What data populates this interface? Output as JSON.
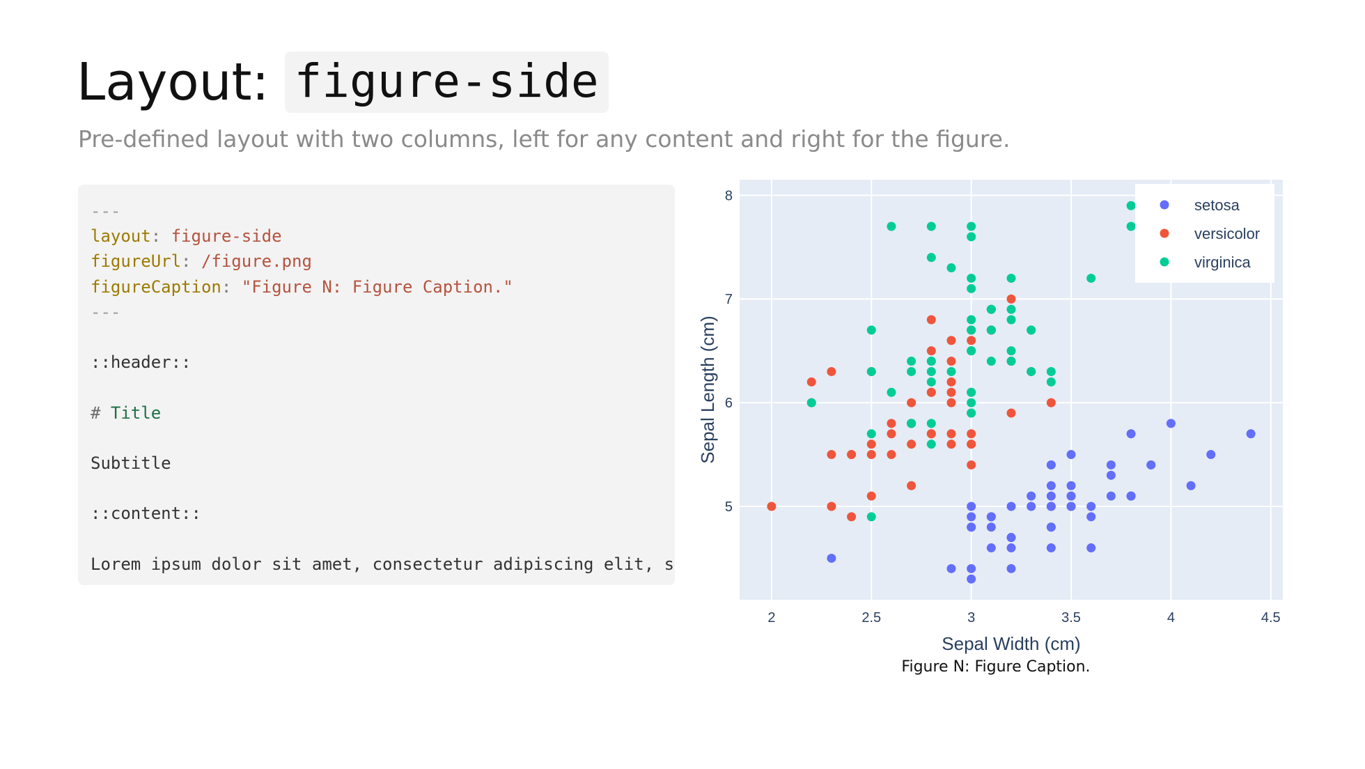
{
  "header": {
    "title_prefix": "Layout:",
    "title_code": "figure-side",
    "subtitle": "Pre-defined layout with two columns, left for any content and right for the figure."
  },
  "code": {
    "lines": [
      [
        {
          "t": "---",
          "c": "comment"
        }
      ],
      [
        {
          "t": "layout",
          "c": "key"
        },
        {
          "t": ": ",
          "c": "punct"
        },
        {
          "t": "figure-side",
          "c": "val"
        }
      ],
      [
        {
          "t": "figureUrl",
          "c": "key"
        },
        {
          "t": ": ",
          "c": "punct"
        },
        {
          "t": "/figure.png",
          "c": "val"
        }
      ],
      [
        {
          "t": "figureCaption",
          "c": "key"
        },
        {
          "t": ": ",
          "c": "punct"
        },
        {
          "t": "\"Figure N: Figure Caption.\"",
          "c": "val"
        }
      ],
      [
        {
          "t": "---",
          "c": "comment"
        }
      ],
      [],
      [
        {
          "t": "::header::",
          "c": "plain"
        }
      ],
      [],
      [
        {
          "t": "# ",
          "c": "hash"
        },
        {
          "t": "Title",
          "c": "heading"
        }
      ],
      [],
      [
        {
          "t": "Subtitle",
          "c": "plain"
        }
      ],
      [],
      [
        {
          "t": "::content::",
          "c": "plain"
        }
      ],
      [],
      [
        {
          "t": "Lorem ipsum dolor sit amet, consectetur adipiscing elit, s",
          "c": "plain"
        }
      ]
    ]
  },
  "figure": {
    "caption": "Figure N: Figure Caption."
  },
  "chart_data": {
    "type": "scatter",
    "title": "",
    "xlabel": "Sepal Width (cm)",
    "ylabel": "Sepal Length (cm)",
    "xlim": [
      1.84,
      4.56
    ],
    "ylim": [
      4.1,
      8.15
    ],
    "x_ticks": [
      2,
      2.5,
      3,
      3.5,
      4,
      4.5
    ],
    "x_tick_labels": [
      "2",
      "2.5",
      "3",
      "3.5",
      "4",
      "4.5"
    ],
    "y_ticks": [
      5,
      6,
      7,
      8
    ],
    "y_tick_labels": [
      "5",
      "6",
      "7",
      "8"
    ],
    "grid": true,
    "legend_position": "top-right",
    "plot_background": "#e5ecf6",
    "series": [
      {
        "name": "setosa",
        "color": "#636efa",
        "points": [
          [
            3.5,
            5.1
          ],
          [
            3.0,
            4.9
          ],
          [
            3.2,
            4.7
          ],
          [
            3.1,
            4.6
          ],
          [
            3.6,
            5.0
          ],
          [
            3.9,
            5.4
          ],
          [
            3.4,
            4.6
          ],
          [
            3.4,
            5.0
          ],
          [
            2.9,
            4.4
          ],
          [
            3.1,
            4.9
          ],
          [
            3.7,
            5.4
          ],
          [
            3.4,
            4.8
          ],
          [
            3.0,
            4.8
          ],
          [
            3.0,
            4.3
          ],
          [
            4.0,
            5.8
          ],
          [
            4.4,
            5.7
          ],
          [
            3.9,
            5.4
          ],
          [
            3.5,
            5.1
          ],
          [
            3.8,
            5.7
          ],
          [
            3.8,
            5.1
          ],
          [
            3.4,
            5.4
          ],
          [
            3.7,
            5.1
          ],
          [
            3.6,
            4.6
          ],
          [
            3.3,
            5.1
          ],
          [
            3.4,
            4.8
          ],
          [
            3.0,
            5.0
          ],
          [
            3.4,
            5.0
          ],
          [
            3.5,
            5.2
          ],
          [
            3.4,
            5.2
          ],
          [
            3.2,
            4.7
          ],
          [
            3.1,
            4.8
          ],
          [
            3.4,
            5.4
          ],
          [
            4.1,
            5.2
          ],
          [
            4.2,
            5.5
          ],
          [
            3.1,
            4.9
          ],
          [
            3.2,
            5.0
          ],
          [
            3.5,
            5.5
          ],
          [
            3.6,
            4.9
          ],
          [
            3.0,
            4.4
          ],
          [
            3.4,
            5.1
          ],
          [
            3.5,
            5.0
          ],
          [
            2.3,
            4.5
          ],
          [
            3.2,
            4.4
          ],
          [
            3.5,
            5.0
          ],
          [
            3.8,
            5.1
          ],
          [
            3.0,
            4.8
          ],
          [
            3.8,
            5.1
          ],
          [
            3.2,
            4.6
          ],
          [
            3.7,
            5.3
          ],
          [
            3.3,
            5.0
          ]
        ]
      },
      {
        "name": "versicolor",
        "color": "#ef553b",
        "points": [
          [
            3.2,
            7.0
          ],
          [
            3.2,
            6.4
          ],
          [
            3.1,
            6.9
          ],
          [
            2.3,
            5.5
          ],
          [
            2.8,
            6.5
          ],
          [
            2.8,
            5.7
          ],
          [
            3.3,
            6.3
          ],
          [
            2.4,
            4.9
          ],
          [
            2.9,
            6.6
          ],
          [
            2.7,
            5.2
          ],
          [
            2.0,
            5.0
          ],
          [
            3.0,
            5.9
          ],
          [
            2.2,
            6.0
          ],
          [
            2.9,
            6.1
          ],
          [
            2.9,
            5.6
          ],
          [
            3.1,
            6.7
          ],
          [
            3.0,
            5.6
          ],
          [
            2.7,
            5.8
          ],
          [
            2.2,
            6.2
          ],
          [
            2.5,
            5.6
          ],
          [
            3.2,
            5.9
          ],
          [
            2.8,
            6.1
          ],
          [
            2.5,
            6.3
          ],
          [
            2.8,
            6.1
          ],
          [
            2.9,
            6.4
          ],
          [
            3.0,
            6.6
          ],
          [
            2.8,
            6.8
          ],
          [
            3.0,
            6.7
          ],
          [
            2.9,
            6.0
          ],
          [
            2.6,
            5.7
          ],
          [
            2.4,
            5.5
          ],
          [
            2.4,
            5.5
          ],
          [
            2.7,
            5.8
          ],
          [
            2.7,
            6.0
          ],
          [
            3.0,
            5.4
          ],
          [
            3.4,
            6.0
          ],
          [
            3.1,
            6.7
          ],
          [
            2.3,
            6.3
          ],
          [
            3.0,
            5.6
          ],
          [
            2.5,
            5.5
          ],
          [
            2.6,
            5.5
          ],
          [
            3.0,
            6.1
          ],
          [
            2.6,
            5.8
          ],
          [
            2.3,
            5.0
          ],
          [
            2.7,
            5.6
          ],
          [
            3.0,
            5.7
          ],
          [
            2.9,
            5.7
          ],
          [
            2.9,
            6.2
          ],
          [
            2.5,
            5.1
          ],
          [
            2.8,
            5.7
          ]
        ]
      },
      {
        "name": "virginica",
        "color": "#00cc96",
        "points": [
          [
            3.3,
            6.3
          ],
          [
            2.7,
            5.8
          ],
          [
            3.0,
            7.1
          ],
          [
            2.9,
            6.3
          ],
          [
            3.0,
            6.5
          ],
          [
            3.0,
            7.6
          ],
          [
            2.5,
            4.9
          ],
          [
            2.9,
            7.3
          ],
          [
            2.5,
            6.7
          ],
          [
            3.6,
            7.2
          ],
          [
            3.2,
            6.5
          ],
          [
            2.7,
            6.4
          ],
          [
            3.0,
            6.8
          ],
          [
            2.5,
            5.7
          ],
          [
            2.8,
            5.8
          ],
          [
            3.2,
            6.4
          ],
          [
            3.0,
            6.5
          ],
          [
            3.8,
            7.7
          ],
          [
            2.6,
            7.7
          ],
          [
            2.2,
            6.0
          ],
          [
            3.2,
            6.9
          ],
          [
            2.8,
            5.6
          ],
          [
            2.8,
            7.7
          ],
          [
            2.7,
            6.3
          ],
          [
            3.3,
            6.7
          ],
          [
            3.2,
            7.2
          ],
          [
            2.8,
            6.2
          ],
          [
            3.0,
            6.1
          ],
          [
            2.8,
            6.4
          ],
          [
            3.0,
            7.2
          ],
          [
            2.8,
            7.4
          ],
          [
            3.8,
            7.9
          ],
          [
            2.8,
            6.4
          ],
          [
            2.8,
            6.3
          ],
          [
            2.6,
            6.1
          ],
          [
            3.0,
            7.7
          ],
          [
            3.4,
            6.3
          ],
          [
            3.1,
            6.4
          ],
          [
            3.0,
            6.0
          ],
          [
            3.1,
            6.9
          ],
          [
            3.1,
            6.7
          ],
          [
            3.1,
            6.9
          ],
          [
            2.7,
            5.8
          ],
          [
            3.2,
            6.8
          ],
          [
            3.3,
            6.7
          ],
          [
            3.0,
            6.7
          ],
          [
            2.5,
            6.3
          ],
          [
            3.0,
            6.5
          ],
          [
            3.4,
            6.2
          ],
          [
            3.0,
            5.9
          ]
        ]
      }
    ]
  }
}
